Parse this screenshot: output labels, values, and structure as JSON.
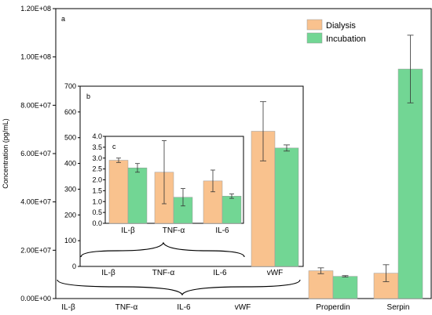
{
  "chart_data": [
    {
      "panel": "a",
      "type": "bar",
      "ylabel": "Concentration (pg/mL)",
      "ylim": [
        0,
        120000000
      ],
      "y_ticks": [
        "0.00E+00",
        "2.00E+07",
        "4.00E+07",
        "6.00E+07",
        "8.00E+07",
        "1.00E+08",
        "1.20E+08"
      ],
      "categories": [
        "IL-β",
        "TNF-α",
        "IL-6",
        "vWF",
        "Properdin",
        "Serpin"
      ],
      "series": [
        {
          "name": "Dialysis",
          "color": "#f9c28e",
          "values": [
            null,
            null,
            null,
            null,
            11500000,
            10500000
          ],
          "errors": [
            null,
            null,
            null,
            null,
            1200000,
            3500000
          ]
        },
        {
          "name": "Incubation",
          "color": "#72d694",
          "values": [
            null,
            null,
            null,
            null,
            9200000,
            95000000
          ],
          "errors": [
            null,
            null,
            null,
            null,
            300000,
            14000000
          ]
        }
      ],
      "legend": "top-right"
    },
    {
      "panel": "b",
      "type": "bar",
      "ylim": [
        0,
        700
      ],
      "y_ticks": [
        "0",
        "100",
        "200",
        "300",
        "400",
        "500",
        "600",
        "700"
      ],
      "categories": [
        "IL-β",
        "TNF-α",
        "IL-6",
        "vWF"
      ],
      "series": [
        {
          "name": "Dialysis",
          "values": [
            null,
            null,
            null,
            525
          ],
          "errors": [
            null,
            null,
            null,
            115
          ]
        },
        {
          "name": "Incubation",
          "values": [
            null,
            null,
            null,
            460
          ],
          "errors": [
            null,
            null,
            null,
            12
          ]
        }
      ]
    },
    {
      "panel": "c",
      "type": "bar",
      "ylim": [
        0,
        4.0
      ],
      "y_ticks": [
        "0.0",
        "0.5",
        "1.0",
        "1.5",
        "2.0",
        "2.5",
        "3.0",
        "3.5",
        "4.0"
      ],
      "categories": [
        "IL-β",
        "TNF-α",
        "IL-6"
      ],
      "series": [
        {
          "name": "Dialysis",
          "values": [
            2.9,
            2.35,
            1.95
          ],
          "errors": [
            0.1,
            1.45,
            0.5
          ]
        },
        {
          "name": "Incubation",
          "values": [
            2.55,
            1.2,
            1.25
          ],
          "errors": [
            0.2,
            0.4,
            0.1
          ]
        }
      ]
    }
  ]
}
